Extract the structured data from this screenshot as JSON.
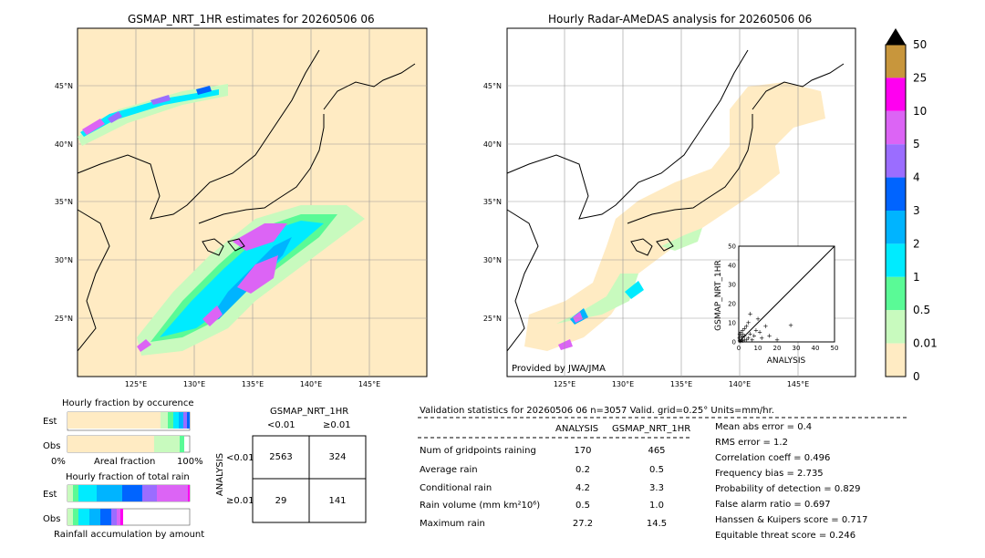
{
  "left_map": {
    "title": "GSMAP_NRT_1HR estimates for 20260506 06",
    "lat_labels": [
      "45°N",
      "40°N",
      "35°N",
      "30°N",
      "25°N"
    ],
    "lon_labels": [
      "125°E",
      "130°E",
      "135°E",
      "140°E",
      "145°E"
    ]
  },
  "right_map": {
    "title": "Hourly Radar-AMeDAS analysis for 20260506 06",
    "lat_labels": [
      "45°N",
      "40°N",
      "35°N",
      "30°N",
      "25°N"
    ],
    "lon_labels": [
      "125°E",
      "130°E",
      "135°E",
      "140°E",
      "145°E"
    ],
    "credit": "Provided by JWA/JMA"
  },
  "colorbar": {
    "labels": [
      "50",
      "25",
      "10",
      "5",
      "4",
      "3",
      "2",
      "1",
      "0.5",
      "0.01",
      "0"
    ],
    "colors": [
      "#c8963c",
      "#ff00f0",
      "#dc64f5",
      "#9b6dff",
      "#0064ff",
      "#00b4ff",
      "#00ebff",
      "#5afa96",
      "#c8fabe",
      "#ffebc3"
    ]
  },
  "chart_data": [
    {
      "type": "scatter",
      "xlabel": "ANALYSIS",
      "ylabel": "GSMAP_NRT_1HR",
      "xlim": [
        0,
        50
      ],
      "ylim": [
        0,
        50
      ],
      "ticks": [
        "0",
        "10",
        "20",
        "30",
        "40",
        "50"
      ],
      "points": [
        [
          0.5,
          0.5
        ],
        [
          1,
          0.2
        ],
        [
          1.5,
          1
        ],
        [
          2,
          0.5
        ],
        [
          0.3,
          2
        ],
        [
          1,
          3
        ],
        [
          2,
          2.5
        ],
        [
          3,
          1
        ],
        [
          0.5,
          4
        ],
        [
          2,
          4
        ],
        [
          3,
          3
        ],
        [
          4,
          1
        ],
        [
          1,
          5
        ],
        [
          5,
          2
        ],
        [
          2,
          6
        ],
        [
          6,
          4
        ],
        [
          3,
          7
        ],
        [
          7,
          1
        ],
        [
          4,
          8
        ],
        [
          8,
          3
        ],
        [
          5,
          10
        ],
        [
          9,
          6
        ],
        [
          10,
          12
        ],
        [
          12,
          2
        ],
        [
          14,
          8
        ],
        [
          16,
          3
        ],
        [
          20,
          1
        ],
        [
          27.2,
          8.5
        ],
        [
          6,
          14.5
        ],
        [
          11,
          5
        ]
      ]
    },
    {
      "type": "bar",
      "title": "Hourly fraction by occurence",
      "ylabel_top": "Est",
      "ylabel_bottom": "Obs",
      "xlabel": "Areal fraction",
      "x_ticks": [
        "0%",
        "100%"
      ]
    },
    {
      "type": "bar",
      "title": "Hourly fraction of total rain",
      "ylabel_top": "Est",
      "ylabel_bottom": "Obs",
      "xlabel": "Rainfall accumulation by amount"
    }
  ],
  "contingency": {
    "header": "GSMAP_NRT_1HR",
    "col_lt": "<0.01",
    "col_ge": "≥0.01",
    "side": "ANALYSIS",
    "row_lt": "<0.01",
    "row_ge": "≥0.01",
    "cells": [
      "2563",
      "324",
      "29",
      "141"
    ]
  },
  "validation": {
    "header": "Validation statistics for 20260506 06  n=3057 Valid. grid=0.25° Units=mm/hr.",
    "col_analysis": "ANALYSIS",
    "col_gsmap": "GSMAP_NRT_1HR",
    "rows": [
      {
        "label": "Num of gridpoints raining",
        "analysis": "170",
        "gsmap": "465"
      },
      {
        "label": "Average rain",
        "analysis": "0.2",
        "gsmap": "0.5"
      },
      {
        "label": "Conditional rain",
        "analysis": "4.2",
        "gsmap": "3.3"
      },
      {
        "label": "Rain volume (mm km²10⁶)",
        "analysis": "0.5",
        "gsmap": "1.0"
      },
      {
        "label": "Maximum rain",
        "analysis": "27.2",
        "gsmap": "14.5"
      }
    ],
    "scores": [
      "Mean abs error =    0.4",
      "RMS error =    1.2",
      "Correlation coeff =  0.496",
      "Frequency bias =  2.735",
      "Probability of detection =  0.829",
      "False alarm ratio =  0.697",
      "Hanssen & Kuipers score =  0.717",
      "Equitable threat score =  0.246"
    ]
  }
}
